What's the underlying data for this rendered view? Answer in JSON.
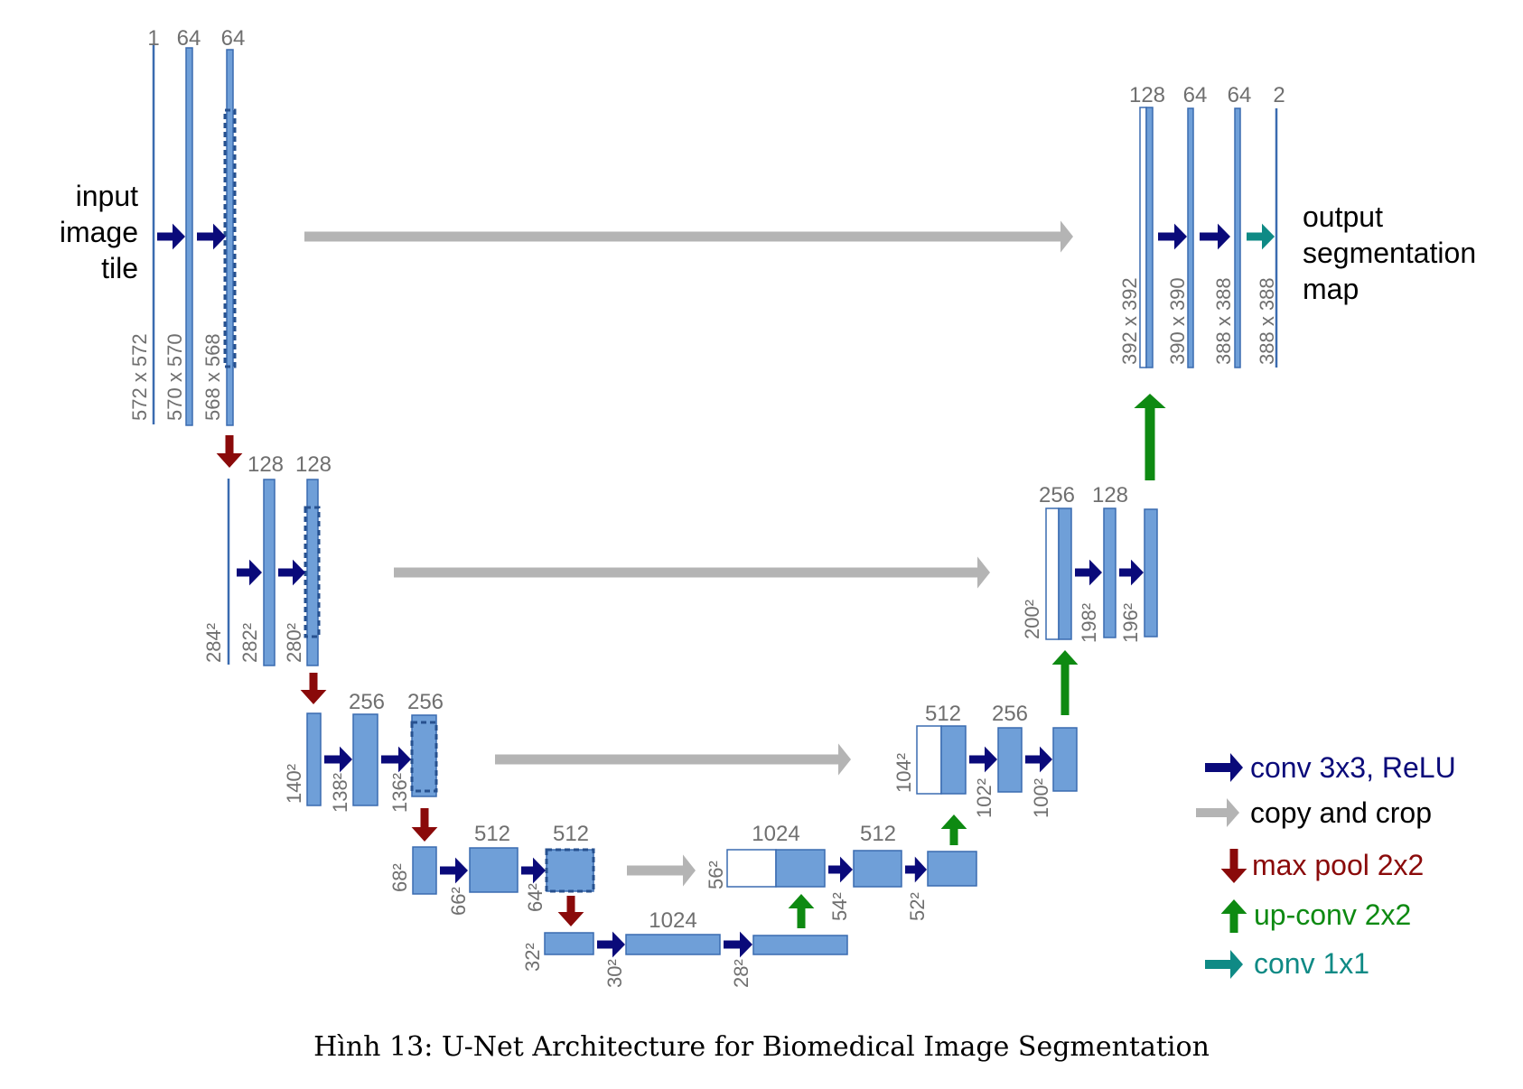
{
  "colors": {
    "block_fill": "#6f9fd8",
    "block_stroke": "#3a6bb0",
    "conv": "#0a0a7a",
    "copy": "#b4b4b4",
    "pool": "#8a0a0a",
    "upconv": "#0e8a12",
    "conv1x1": "#0f8a85",
    "label": "#6f6f6f"
  },
  "input_label": [
    "input",
    "image",
    "tile"
  ],
  "output_label": [
    "output",
    "segmentation",
    "map"
  ],
  "channels": {
    "l1": [
      "1",
      "64",
      "64"
    ],
    "l2": [
      "128",
      "128"
    ],
    "l3": [
      "256",
      "256"
    ],
    "l4": [
      "512",
      "512"
    ],
    "l5": [
      "1024"
    ],
    "u4": [
      "1024",
      "512"
    ],
    "u3": [
      "512",
      "256"
    ],
    "u2": [
      "256",
      "128"
    ],
    "u1": [
      "128",
      "64",
      "64",
      "2"
    ]
  },
  "sizes": {
    "l1": [
      "572 x 572",
      "570 x 570",
      "568 x 568"
    ],
    "l2": [
      "284²",
      "282²",
      "280²"
    ],
    "l3": [
      "140²",
      "138²",
      "136²"
    ],
    "l4": [
      "68²",
      "66²",
      "64²"
    ],
    "l5": [
      "32²",
      "30²",
      "28²"
    ],
    "u4": [
      "56²",
      "54²",
      "52²"
    ],
    "u3": [
      "104²",
      "102²",
      "100²"
    ],
    "u2": [
      "200²",
      "198²",
      "196²"
    ],
    "u1": [
      "392 x 392",
      "390 x 390",
      "388 x 388",
      "388 x 388"
    ]
  },
  "legend": {
    "conv": "conv 3x3, ReLU",
    "copy": "copy and crop",
    "pool": "max pool 2x2",
    "upconv": "up-conv 2x2",
    "conv1x1": "conv 1x1"
  },
  "caption": "Hình 13: U-Net Architecture for Biomedical Image Segmentation"
}
